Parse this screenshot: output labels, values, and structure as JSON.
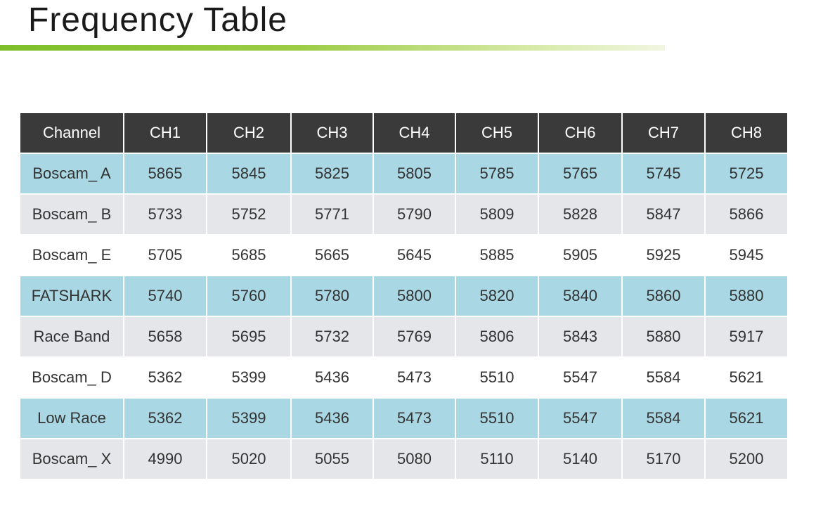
{
  "title": "Frequency Table",
  "colors": {
    "header": "#3a3a3a",
    "blue_row": "#a9d7e4",
    "grey_row": "#e5e6e9",
    "accent": "#7dbf2a"
  },
  "table": {
    "headers": [
      "Channel",
      "CH1",
      "CH2",
      "CH3",
      "CH4",
      "CH5",
      "CH6",
      "CH7",
      "CH8"
    ],
    "rows": [
      {
        "style": "blue",
        "cells": [
          "Boscam_ A",
          "5865",
          "5845",
          "5825",
          "5805",
          "5785",
          "5765",
          "5745",
          "5725"
        ]
      },
      {
        "style": "grey",
        "cells": [
          "Boscam_ B",
          "5733",
          "5752",
          "5771",
          "5790",
          "5809",
          "5828",
          "5847",
          "5866"
        ]
      },
      {
        "style": "white",
        "cells": [
          "Boscam_ E",
          "5705",
          "5685",
          "5665",
          "5645",
          "5885",
          "5905",
          "5925",
          "5945"
        ]
      },
      {
        "style": "blue",
        "cells": [
          "FATSHARK",
          "5740",
          "5760",
          "5780",
          "5800",
          "5820",
          "5840",
          "5860",
          "5880"
        ]
      },
      {
        "style": "grey",
        "cells": [
          "Race Band",
          "5658",
          "5695",
          "5732",
          "5769",
          "5806",
          "5843",
          "5880",
          "5917"
        ]
      },
      {
        "style": "white",
        "cells": [
          "Boscam_ D",
          "5362",
          "5399",
          "5436",
          "5473",
          "5510",
          "5547",
          "5584",
          "5621"
        ]
      },
      {
        "style": "blue",
        "cells": [
          "Low Race",
          "5362",
          "5399",
          "5436",
          "5473",
          "5510",
          "5547",
          "5584",
          "5621"
        ]
      },
      {
        "style": "grey",
        "cells": [
          "Boscam_ X",
          "4990",
          "5020",
          "5055",
          "5080",
          "5110",
          "5140",
          "5170",
          "5200"
        ]
      }
    ]
  }
}
